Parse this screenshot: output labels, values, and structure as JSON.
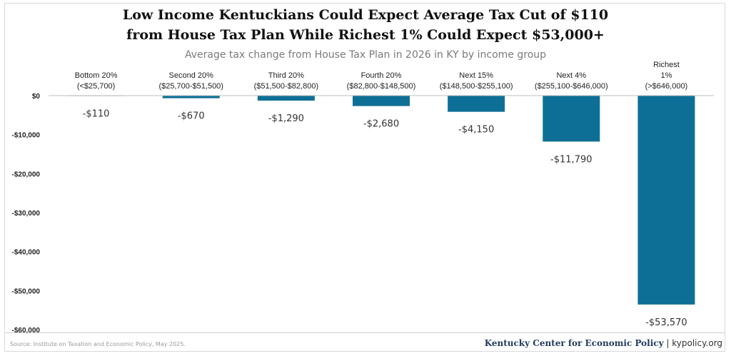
{
  "title_line1": "Low Income Kentuckians Could Expect Average Tax Cut of $110",
  "title_line2": "from House Tax Plan While Richest 1% Could Expect $53,000+",
  "footer": {
    "source": "Source: Institute on Taxation and Economic Policy, May 2025.",
    "org": "Kentucky Center for Economic Policy",
    "separator": "|",
    "url": "kypolicy.org"
  },
  "colors": {
    "bar": "#0e6f96",
    "axis": "#bfbfbf"
  },
  "chart_data": {
    "type": "bar",
    "title": "Average tax change from House Tax Plan in 2026 in KY by income group",
    "xlabel": "",
    "ylabel": "",
    "ylim": [
      -60000,
      0
    ],
    "yticks": [
      0,
      -10000,
      -20000,
      -30000,
      -40000,
      -50000,
      -60000
    ],
    "ytick_labels": [
      "$0",
      "-$10,000",
      "-$20,000",
      "-$30,000",
      "-$40,000",
      "-$50,000",
      "-$60,000"
    ],
    "categories": [
      [
        "Bottom 20%",
        "(<$25,700)"
      ],
      [
        "Second 20%",
        "($25,700-$51,500)"
      ],
      [
        "Third 20%",
        "($51,500-$82,800)"
      ],
      [
        "Fourth 20%",
        "($82,800-$148,500)"
      ],
      [
        "Next 15%",
        "($148,500-$255,100)"
      ],
      [
        "Next 4%",
        "($255,100-$646,000)"
      ],
      [
        "Richest",
        "1%",
        "(>$646,000)"
      ]
    ],
    "values": [
      -110,
      -670,
      -1290,
      -2680,
      -4150,
      -11790,
      -53570
    ],
    "value_labels": [
      "-$110",
      "-$670",
      "-$1,290",
      "-$2,680",
      "-$4,150",
      "-$11,790",
      "-$53,570"
    ]
  }
}
